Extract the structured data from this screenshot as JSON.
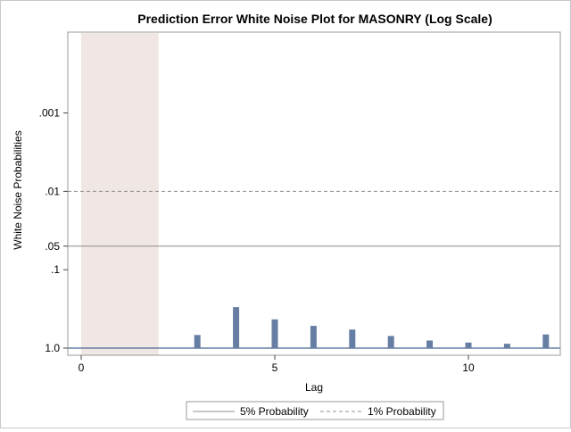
{
  "chart_data": {
    "type": "bar",
    "title": "Prediction Error White Noise Plot for MASONRY (Log Scale)",
    "xlabel": "Lag",
    "ylabel": "White Noise Probabilities",
    "x_ticks": [
      "0",
      "5",
      "10"
    ],
    "y_scale": "log, reversed (1.0 at bottom)",
    "y_ticks": [
      ".001",
      ".01",
      ".05",
      ".1",
      "1.0"
    ],
    "xlim": [
      -0.3,
      12.3
    ],
    "shaded_region": {
      "from_lag": 0,
      "to_lag": 2,
      "color": "#f0e6e3"
    },
    "reference_lines": [
      {
        "name": "5% Probability",
        "value": 0.05,
        "style": "solid",
        "color": "#8c8c8c"
      },
      {
        "name": "1% Probability",
        "value": 0.01,
        "style": "dashed",
        "color": "#8c8c8c"
      }
    ],
    "series": [
      {
        "lags": [
          3,
          4,
          5,
          6,
          7,
          8,
          9,
          10,
          11,
          12
        ],
        "values": [
          0.68,
          0.3,
          0.43,
          0.52,
          0.58,
          0.7,
          0.8,
          0.85,
          0.88,
          0.67
        ],
        "color": "#667ea4"
      }
    ],
    "legend": [
      "5% Probability",
      "1% Probability"
    ],
    "legend_position": "bottom-center",
    "grid": false
  }
}
